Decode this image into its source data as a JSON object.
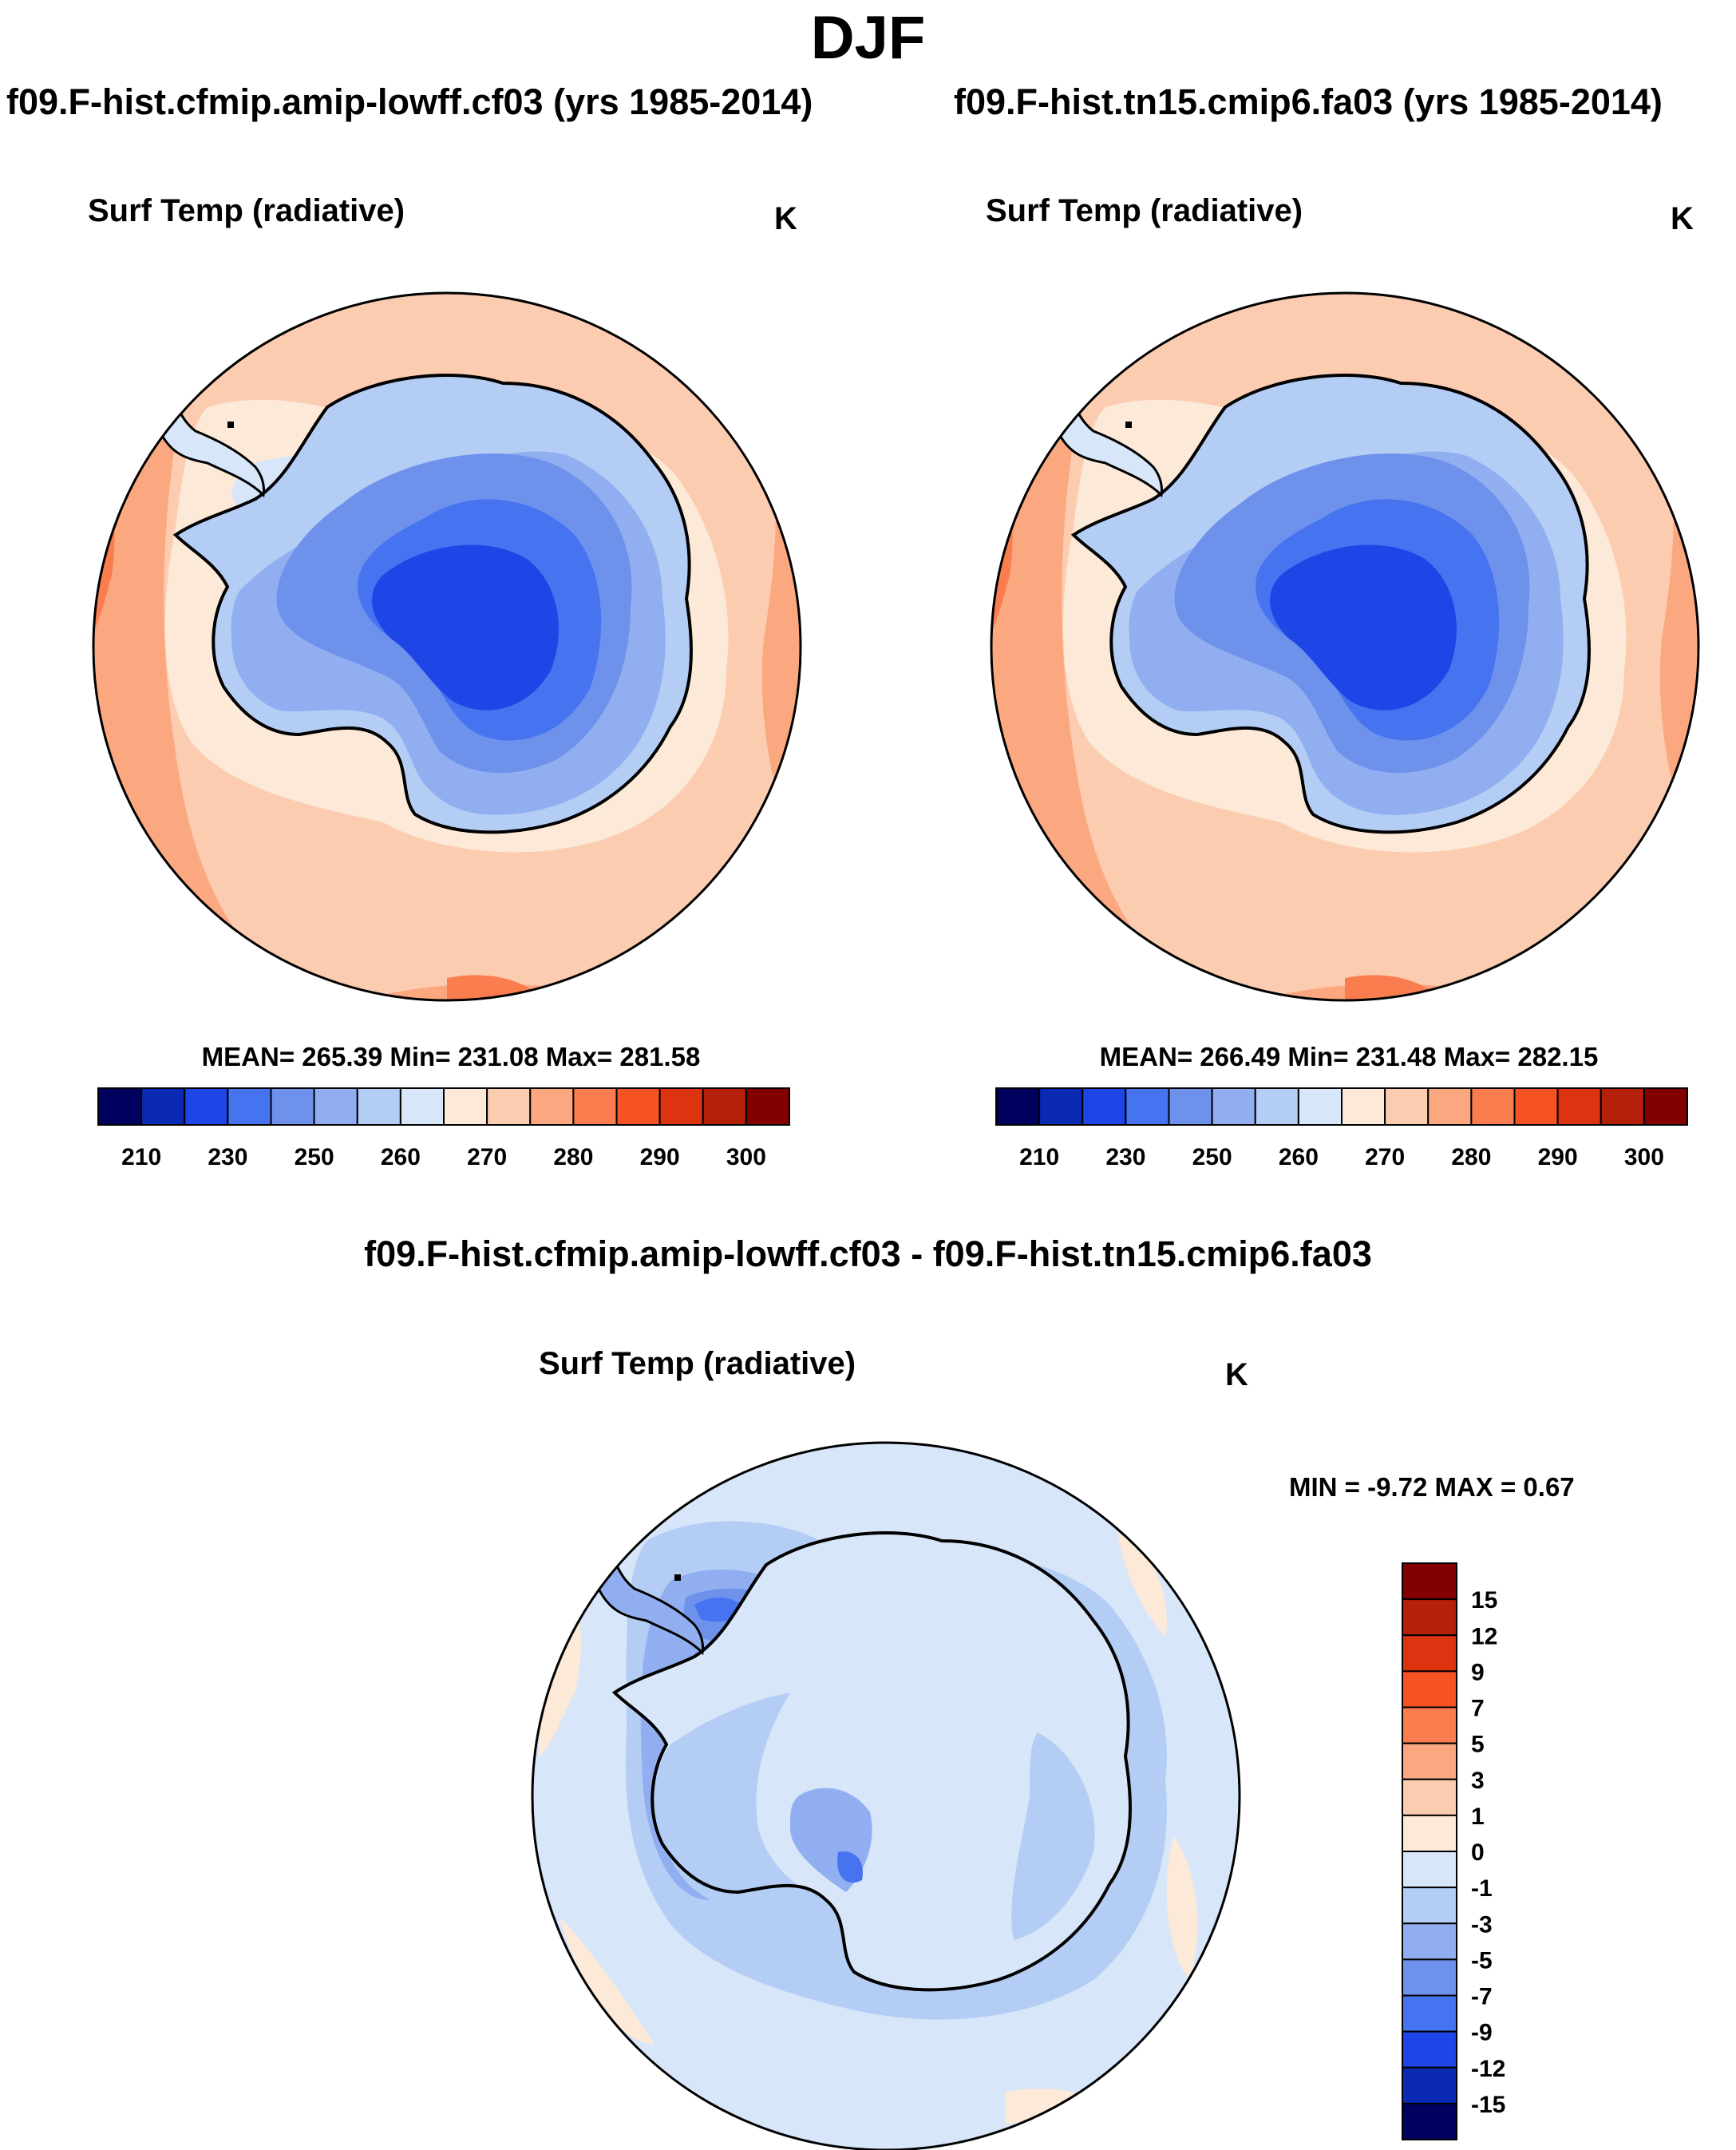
{
  "figure": {
    "title": "DJF",
    "panel_left": {
      "case": "f09.F-hist.cfmip.amip-lowff.cf03 (yrs 1985-2014)",
      "variable": "Surf Temp (radiative)",
      "units": "K",
      "stats": "MEAN= 265.39  Min= 231.08  Max= 281.58"
    },
    "panel_right": {
      "case": "f09.F-hist.tn15.cmip6.fa03 (yrs 1985-2014)",
      "variable": "Surf Temp (radiative)",
      "units": "K",
      "stats": "MEAN= 266.49  Min= 231.48  Max= 282.15"
    },
    "panel_diff": {
      "case": "f09.F-hist.cfmip.amip-lowff.cf03 - f09.F-hist.tn15.cmip6.fa03",
      "variable": "Surf Temp (radiative)",
      "units": "K",
      "minmax": "MIN =  -9.72 MAX =   0.67"
    }
  },
  "colorbar_abs": {
    "colors": [
      "#00005f",
      "#0a2ab4",
      "#1e46e6",
      "#4673f0",
      "#6e91eb",
      "#91aff0",
      "#b4cdf5",
      "#d7e6f9",
      "#fde9d7",
      "#fcccb0",
      "#fba880",
      "#fa7d50",
      "#f55323",
      "#dc3310",
      "#b4200a",
      "#820000"
    ],
    "tick_labels": [
      "210",
      "230",
      "250",
      "260",
      "270",
      "280",
      "290",
      "300"
    ]
  },
  "colorbar_diff": {
    "colors": [
      "#820000",
      "#b4200a",
      "#dc3310",
      "#f55323",
      "#fa7d50",
      "#fba880",
      "#fcccb0",
      "#fde9d7",
      "#d7e6f9",
      "#b4cdf5",
      "#91aff0",
      "#6e91eb",
      "#4673f0",
      "#1e46e6",
      "#0a2ab4",
      "#00005f"
    ],
    "tick_labels": [
      "15",
      "12",
      "9",
      "7",
      "5",
      "3",
      "1",
      "0",
      "-1",
      "-3",
      "-5",
      "-7",
      "-9",
      "-12",
      "-15"
    ]
  }
}
